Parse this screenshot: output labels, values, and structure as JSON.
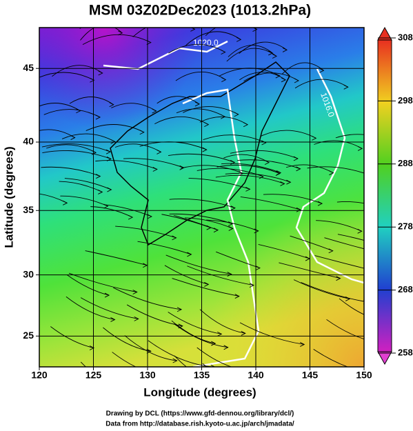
{
  "chart_data": {
    "type": "map",
    "title": "MSM 03Z02Dec2023 (1013.2hPa)",
    "x_label": "Longitude (degrees)",
    "y_label": "Latitude  (degrees)",
    "xlim": [
      120,
      150
    ],
    "xticks": [
      120,
      125,
      130,
      135,
      140,
      145,
      150
    ],
    "ylim": [
      22.4,
      47.6
    ],
    "yticks": [
      25,
      30,
      35,
      40,
      45
    ],
    "projection": "mercator",
    "grid": true,
    "colorbar": {
      "lim": [
        258,
        308
      ],
      "ticks": [
        258,
        268,
        278,
        288,
        298,
        308
      ]
    },
    "contour_labels": [
      "1020.0",
      "1016.0"
    ],
    "credits": [
      "Drawing by DCL (https://www.gfd-dennou.org/library/dcl/)",
      "Data from http://database.rish.kyoto-u.ac.jp/arch/jmadata/"
    ]
  }
}
